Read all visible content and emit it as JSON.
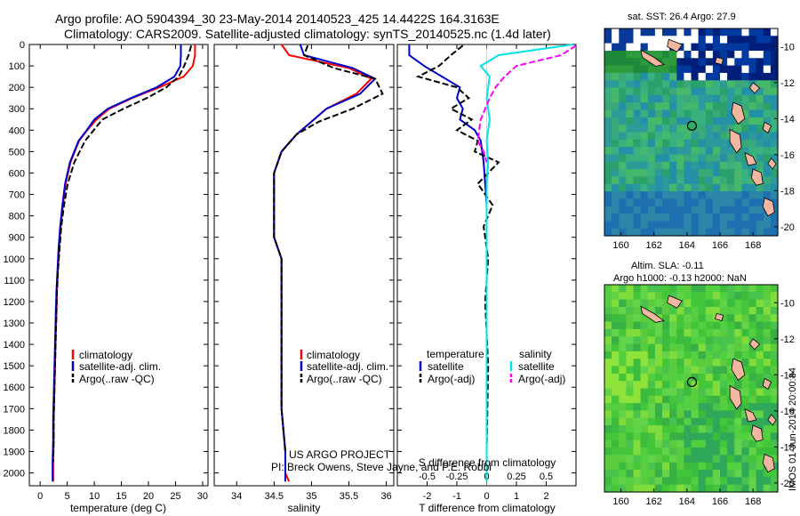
{
  "header": {
    "line1": "Argo profile: AO 5904394_30 23-May-2014 20140523_425 14.4422S 164.3163E",
    "line2": "Climatology: CARS2009. Satellite-adjusted climatology: synTS_20140525.nc (1.4d later)"
  },
  "colors": {
    "clim": "#ff0000",
    "sat": "#0000cc",
    "argo": "#000000",
    "sal_sat": "#00e6e6",
    "sal_argo": "#ff00ff",
    "land": "#f3b6a0"
  },
  "chart_data": [
    {
      "id": "temperature",
      "type": "line",
      "xlabel": "temperature (deg C)",
      "ylabel": "",
      "xlim": [
        -2,
        31
      ],
      "ylim": [
        2060,
        0
      ],
      "invert_y": true,
      "xticks": [
        0,
        5,
        10,
        15,
        20,
        25,
        30
      ],
      "yticks": [
        0,
        100,
        200,
        300,
        400,
        500,
        600,
        700,
        800,
        900,
        1000,
        1100,
        1200,
        1300,
        1400,
        1500,
        1600,
        1700,
        1800,
        1900,
        2000
      ],
      "series": [
        {
          "name": "climatology",
          "color": "#ff0000",
          "style": "solid",
          "x": [
            28.6,
            28.6,
            28.2,
            26.5,
            22.0,
            17.0,
            12.8,
            10.4,
            8.7,
            7.2,
            5.6,
            4.7,
            4.2,
            3.8,
            3.5,
            3.3,
            3.1,
            3.0,
            2.9,
            2.8,
            2.7,
            2.6,
            2.5,
            2.5,
            2.4,
            2.4
          ],
          "y": [
            0,
            50,
            100,
            150,
            200,
            250,
            300,
            350,
            400,
            450,
            550,
            650,
            750,
            850,
            950,
            1050,
            1150,
            1250,
            1350,
            1450,
            1550,
            1650,
            1750,
            1850,
            1950,
            2040
          ]
        },
        {
          "name": "satellite-adj. clim.",
          "color": "#0000cc",
          "style": "solid",
          "x": [
            26.0,
            26.0,
            25.9,
            24.8,
            21.5,
            16.8,
            12.5,
            10.0,
            8.6,
            7.1,
            5.5,
            4.6,
            4.1,
            3.7,
            3.4,
            3.2,
            3.0,
            2.9,
            2.8,
            2.7,
            2.6,
            2.5,
            2.4,
            2.4,
            2.3,
            2.3
          ],
          "y": [
            0,
            50,
            100,
            150,
            200,
            250,
            300,
            350,
            400,
            450,
            550,
            650,
            750,
            850,
            950,
            1050,
            1150,
            1250,
            1350,
            1450,
            1550,
            1650,
            1750,
            1850,
            1950,
            2040
          ]
        },
        {
          "name": "Argo(..raw -QC)",
          "color": "#000000",
          "style": "dashed",
          "x": [
            27.9,
            27.4,
            26.6,
            25.6,
            23.3,
            19.7,
            15.4,
            11.5,
            9.9,
            8.3,
            6.3,
            5.1,
            4.4,
            3.9,
            3.6,
            3.3,
            3.1,
            3.0,
            2.9,
            2.8,
            2.7,
            2.6,
            2.5,
            2.5,
            2.4
          ],
          "y": [
            5,
            50,
            100,
            150,
            200,
            250,
            300,
            350,
            400,
            450,
            550,
            650,
            750,
            850,
            950,
            1050,
            1150,
            1250,
            1350,
            1450,
            1550,
            1650,
            1750,
            1850,
            1950
          ]
        }
      ],
      "legend": {
        "items": [
          "climatology",
          "satellite-adj. clim.",
          "Argo(..raw -QC)"
        ],
        "position": "lower-left"
      }
    },
    {
      "id": "salinity",
      "type": "line",
      "xlabel": "salinity",
      "xlim": [
        33.7,
        36.1
      ],
      "ylim": [
        2060,
        0
      ],
      "invert_y": true,
      "xticks": [
        34,
        34.5,
        35,
        35.5,
        36
      ],
      "series": [
        {
          "name": "climatology",
          "color": "#ff0000",
          "style": "solid",
          "x": [
            34.6,
            34.7,
            35.5,
            35.8,
            35.6,
            35.2,
            35.0,
            34.8,
            34.6,
            34.5,
            34.5,
            34.5,
            34.5,
            34.6,
            34.6,
            34.6,
            34.6,
            34.6,
            34.6,
            34.65,
            34.65,
            34.7
          ],
          "y": [
            0,
            50,
            110,
            160,
            230,
            300,
            360,
            420,
            500,
            600,
            700,
            800,
            900,
            1000,
            1100,
            1200,
            1300,
            1500,
            1700,
            1900,
            2000,
            2040
          ]
        },
        {
          "name": "satellite-adj. clim.",
          "color": "#0000cc",
          "style": "solid",
          "x": [
            34.85,
            34.9,
            35.55,
            35.85,
            35.65,
            35.2,
            35.0,
            34.8,
            34.6,
            34.5,
            34.5,
            34.5,
            34.5,
            34.6,
            34.6,
            34.6,
            34.6,
            34.6,
            34.6,
            34.65,
            34.65,
            34.65
          ],
          "y": [
            0,
            50,
            110,
            160,
            230,
            300,
            360,
            420,
            500,
            600,
            700,
            800,
            900,
            1000,
            1100,
            1200,
            1300,
            1500,
            1700,
            1900,
            2000,
            2040
          ]
        },
        {
          "name": "Argo(..raw -QC)",
          "color": "#000000",
          "style": "dashed",
          "x": [
            34.95,
            34.9,
            35.3,
            35.85,
            35.95,
            35.55,
            35.1,
            34.8,
            34.6,
            34.5,
            34.5,
            34.5,
            34.5,
            34.6,
            34.6,
            34.6,
            34.6,
            34.6,
            34.6,
            34.65
          ],
          "y": [
            5,
            50,
            110,
            160,
            230,
            300,
            360,
            420,
            500,
            600,
            700,
            800,
            900,
            1000,
            1100,
            1200,
            1300,
            1500,
            1700,
            1900
          ]
        }
      ],
      "legend": {
        "items": [
          "climatology",
          "satellite-adj. clim.",
          "Argo(..raw -QC)"
        ],
        "position": "lower-left"
      },
      "annotation": [
        "US ARGO PROJECT",
        "PI: Breck Owens, Steve Jayne, and P.E. Robbi"
      ]
    },
    {
      "id": "difference",
      "type": "line",
      "xlabel": "T difference from climatology",
      "xlabel_top": "S difference from climatology",
      "xlim": [
        -3,
        3
      ],
      "ylim": [
        2060,
        0
      ],
      "invert_y": true,
      "xticks": [
        -2,
        -1,
        0,
        1,
        2
      ],
      "s_xticks": [
        "-0.5",
        "-0.25",
        "0",
        "0.25",
        "0.5"
      ],
      "series": [
        {
          "name": "temperature satellite",
          "color": "#0000cc",
          "style": "solid",
          "x": [
            -2.6,
            -2.6,
            -2.1,
            -1.5,
            -0.9,
            -1.0,
            -0.8,
            -0.9,
            -0.4,
            -0.2,
            -0.1,
            -0.05,
            0,
            0,
            0,
            0,
            0,
            0,
            0,
            0
          ],
          "y": [
            0,
            50,
            100,
            150,
            200,
            250,
            300,
            350,
            400,
            450,
            550,
            650,
            750,
            850,
            1000,
            1200,
            1400,
            1600,
            1800,
            2040
          ]
        },
        {
          "name": "temperature Argo(-adj)",
          "color": "#000000",
          "style": "dashed",
          "x": [
            -0.8,
            -1.2,
            -1.6,
            -2.3,
            -1.0,
            -0.6,
            -1.2,
            -0.5,
            -1.0,
            -0.3,
            -0.4,
            0.4,
            -0.3,
            0.2,
            -0.1,
            0.05,
            -0.05,
            0.05,
            0
          ],
          "y": [
            5,
            50,
            100,
            150,
            200,
            250,
            300,
            350,
            400,
            450,
            500,
            550,
            650,
            750,
            850,
            1000,
            1200,
            1500,
            1900
          ]
        },
        {
          "name": "salinity satellite",
          "color": "#00e6e6",
          "style": "solid",
          "x": [
            2.9,
            0.4,
            -0.2,
            0.1,
            0.0,
            0.1,
            0.0,
            0.05,
            0,
            0,
            0,
            0,
            0,
            0,
            0
          ],
          "y": [
            0,
            50,
            100,
            150,
            250,
            350,
            450,
            550,
            650,
            800,
            1000,
            1200,
            1500,
            1800,
            2040
          ]
        },
        {
          "name": "salinity Argo(-adj)",
          "color": "#ff00ff",
          "style": "dashed",
          "x": [
            3.0,
            2.5,
            1.0,
            0.6,
            0.3,
            0.1,
            -0.2,
            -0.3,
            -0.1,
            0.0
          ],
          "y": [
            5,
            50,
            100,
            150,
            200,
            250,
            350,
            450,
            500,
            550
          ]
        }
      ],
      "legend_left": {
        "title": "temperature",
        "items": [
          "satellite",
          "Argo(-adj)"
        ]
      },
      "legend_right": {
        "title": "salinity",
        "items": [
          "satellite",
          "Argo(-adj)"
        ]
      }
    },
    {
      "id": "sst_map",
      "type": "heatmap",
      "title": "sat. SST: 26.4 Argo: 27.9",
      "xticks": [
        "160",
        "162",
        "164",
        "166",
        "168"
      ],
      "yticks": [
        "-10",
        "-12",
        "-14",
        "-16",
        "-18",
        "-20"
      ],
      "xlim": [
        159,
        169.5
      ],
      "ylim": [
        -20.5,
        -9
      ],
      "marker": [
        164.3,
        -14.4
      ]
    },
    {
      "id": "sla_map",
      "type": "heatmap",
      "title": "Altim. SLA: -0.11",
      "subtitle": "Argo h1000: -0.13 h2000: NaN",
      "xticks": [
        "160",
        "162",
        "164",
        "166",
        "168"
      ],
      "yticks": [
        "-10",
        "-12",
        "-14",
        "-16",
        "-18",
        "-20"
      ],
      "xlim": [
        159,
        169.5
      ],
      "ylim": [
        -20.5,
        -9
      ],
      "marker": [
        164.3,
        -14.4
      ]
    }
  ],
  "footer": {
    "side_label": "IMOS 01-Jun-2014 20:00:34"
  }
}
